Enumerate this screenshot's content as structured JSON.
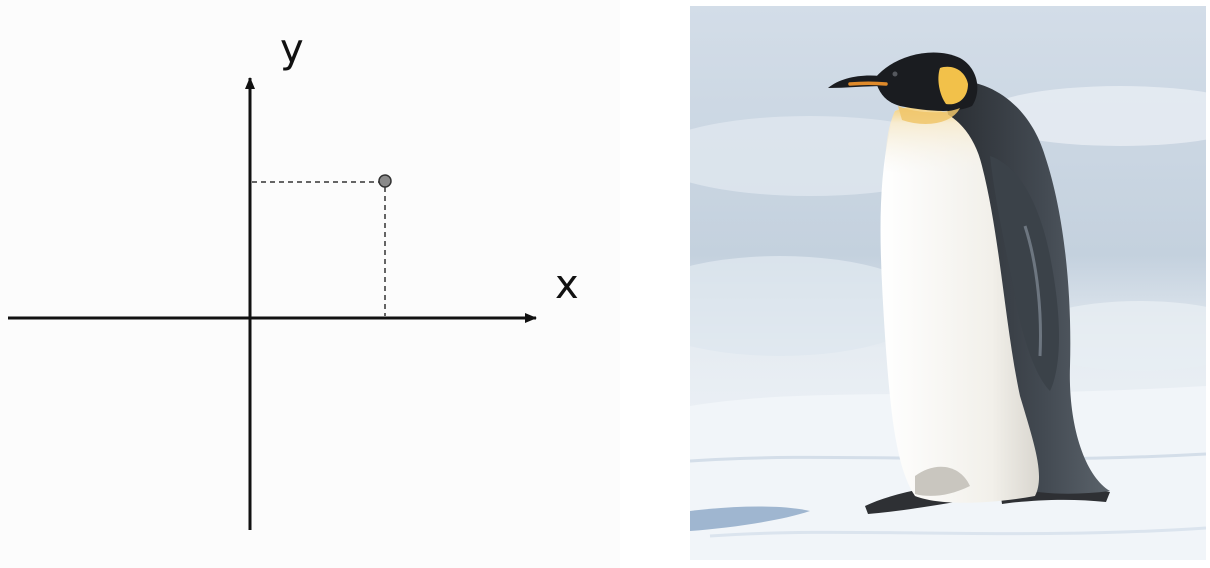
{
  "diagram": {
    "x_label": "x",
    "y_label": "y",
    "axis_color": "#111111",
    "guide_color": "#333333",
    "point_color": "#8a8a8a"
  },
  "photo": {
    "subject": "emperor-penguin-on-snow",
    "colors": {
      "sky_snow": "#c9d6e3",
      "snow": "#f1f5f9",
      "shadow": "#a9bdd4",
      "body_black": "#1e2024",
      "back_gray": "#3a3f45",
      "belly": "#f6f4ee",
      "neck_yellow": "#f2c14a",
      "beak_orange": "#e08a2a"
    }
  }
}
